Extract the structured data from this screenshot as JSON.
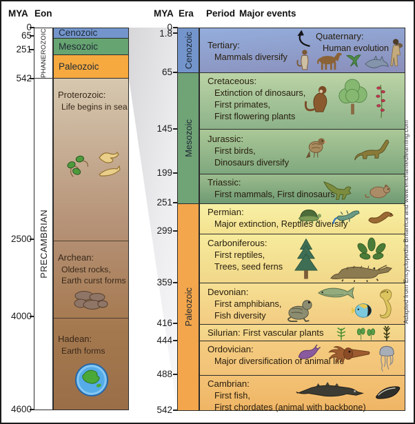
{
  "headers": {
    "mya_left": "MYA",
    "eon": "Eon",
    "mya_right": "MYA",
    "era": "Era",
    "period": "Period",
    "major_events": "Major events"
  },
  "left": {
    "ticks": [
      "0",
      "65",
      "251",
      "542",
      "2500",
      "4000",
      "4600"
    ],
    "eons": [
      {
        "name": "PHANEROZOIC"
      },
      {
        "name": "PRECAMBRIAN"
      }
    ],
    "eras": [
      {
        "name": "Cenozoic",
        "color": "#7395cb"
      },
      {
        "name": "Mesozoic",
        "color": "#66a471"
      },
      {
        "name": "Paleozoic",
        "color": "#f6a93f"
      }
    ],
    "sections": [
      {
        "name": "Proterozoic:",
        "events": [
          "Life begins in sea"
        ],
        "icons": [
          "single-cell-organisms",
          "soft-bodied-organisms"
        ]
      },
      {
        "name": "Archean:",
        "events": [
          "Oldest rocks,",
          "Earth curst forms"
        ],
        "icons": [
          "rocks"
        ]
      },
      {
        "name": "Hadean:",
        "events": [
          "Earth forms"
        ],
        "icons": [
          "earth-globe"
        ]
      }
    ]
  },
  "right": {
    "ticks": [
      "0",
      "1.8",
      "65",
      "145",
      "199",
      "251",
      "299",
      "359",
      "416",
      "444",
      "488",
      "542"
    ],
    "eras": [
      {
        "name": "Cenozoic",
        "color": "#7395cb"
      },
      {
        "name": "Mesozoic",
        "color": "#70a376"
      },
      {
        "name": "Paleozoic",
        "color": "#f3a64b"
      }
    ],
    "quaternary": {
      "name": "Quaternary:",
      "event": "Human evolution"
    },
    "periods": [
      {
        "name": "Tertiary:",
        "events": [
          "Mammals diversify"
        ],
        "icons": [
          "primate",
          "horse",
          "bird",
          "dolphin",
          "human"
        ]
      },
      {
        "name": "Cretaceous:",
        "events": [
          "Extinction of dinosaurs,",
          "First primates,",
          "First flowering plants"
        ],
        "icons": [
          "monkey",
          "tree",
          "flowering-plant"
        ]
      },
      {
        "name": "Jurassic:",
        "events": [
          "First birds,",
          "Dinosaurs diversify"
        ],
        "icons": [
          "perched-bird",
          "sauropod-dinosaur"
        ]
      },
      {
        "name": "Triassic:",
        "events": [
          "First mammals, First dinosaurs"
        ],
        "icons": [
          "theropod-dinosaur",
          "small-mammal"
        ]
      },
      {
        "name": "Permian:",
        "events": [
          "Major extinction, Reptiles diversify"
        ],
        "icons": [
          "turtle",
          "lizard",
          "snake"
        ]
      },
      {
        "name": "Carboniferous:",
        "events": [
          "First reptiles,",
          "Trees, seed ferns"
        ],
        "icons": [
          "conifer-tree",
          "seed-fern",
          "crocodile"
        ]
      },
      {
        "name": "Devonian:",
        "events": [
          "First amphibians,",
          "Fish diversity"
        ],
        "icons": [
          "frog",
          "fish",
          "tropical-fish",
          "seahorse"
        ]
      },
      {
        "name": "Silurian: First vascular plants",
        "events": [],
        "icons": [
          "fern",
          "vascular-plants",
          "club-moss"
        ]
      },
      {
        "name": "Ordovician:",
        "events": [
          "Major diversification of animal life"
        ],
        "icons": [
          "sea-slug",
          "cephalopod",
          "jellyfish"
        ]
      },
      {
        "name": "Cambrian:",
        "events": [
          "First fish,",
          "First chordates (animal with backbone)"
        ],
        "icons": [
          "primitive-fish",
          "lancelet"
        ]
      }
    ]
  },
  "attribution": "Adapted from Encyclopedia Britanica and www.enchantedlearning.com",
  "colors": {
    "cenozoic": "#7395cb",
    "mesozoic": "#6ba572",
    "paleozoic": "#f4a745",
    "precambrian_top": "#d6c8af",
    "precambrian_bottom": "#9a6f48"
  }
}
